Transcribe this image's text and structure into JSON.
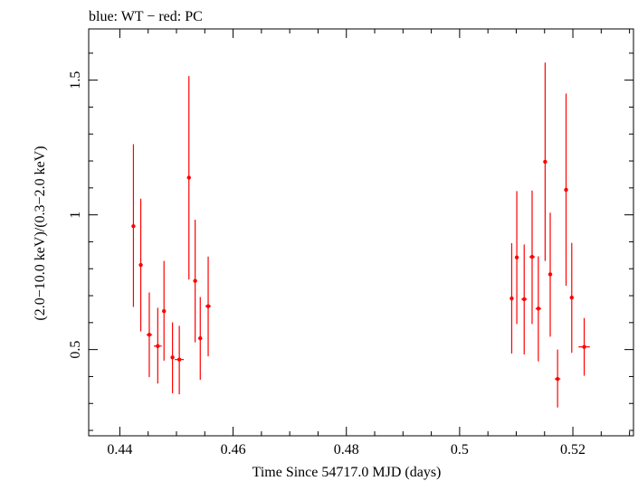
{
  "chart_data": {
    "type": "scatter",
    "title": "blue: WT − red: PC",
    "xlabel": "Time Since 54717.0 MJD (days)",
    "ylabel": "(2.0−10.0 keV)/(0.3−2.0 keV)",
    "xlim": [
      0.4345,
      0.5307
    ],
    "ylim": [
      0.18,
      1.69
    ],
    "x_ticks": [
      0.44,
      0.46,
      0.48,
      0.5,
      0.52
    ],
    "x_tick_labels": [
      "0.44",
      "0.46",
      "0.48",
      "0.5",
      "0.52"
    ],
    "y_ticks": [
      0.5,
      1.0,
      1.5
    ],
    "y_tick_labels": [
      "0.5",
      "1",
      "1.5"
    ],
    "grid": false,
    "series": [
      {
        "color": "#ff0000",
        "points": [
          {
            "x": 0.4424,
            "y": 0.958,
            "xerr": 0.0003,
            "ylo": 0.658,
            "yhi": 1.262
          },
          {
            "x": 0.4437,
            "y": 0.814,
            "xerr": 0.0003,
            "ylo": 0.567,
            "yhi": 1.06
          },
          {
            "x": 0.4452,
            "y": 0.555,
            "xerr": 0.0005,
            "ylo": 0.398,
            "yhi": 0.712
          },
          {
            "x": 0.4467,
            "y": 0.513,
            "xerr": 0.0007,
            "ylo": 0.374,
            "yhi": 0.655
          },
          {
            "x": 0.4478,
            "y": 0.643,
            "xerr": 0.0003,
            "ylo": 0.459,
            "yhi": 0.829
          },
          {
            "x": 0.4493,
            "y": 0.471,
            "xerr": 0.0003,
            "ylo": 0.338,
            "yhi": 0.601
          },
          {
            "x": 0.4505,
            "y": 0.463,
            "xerr": 0.0008,
            "ylo": 0.334,
            "yhi": 0.588
          },
          {
            "x": 0.4522,
            "y": 1.138,
            "xerr": 0.0003,
            "ylo": 0.76,
            "yhi": 1.515
          },
          {
            "x": 0.4533,
            "y": 0.755,
            "xerr": 0.0003,
            "ylo": 0.527,
            "yhi": 0.982
          },
          {
            "x": 0.4542,
            "y": 0.542,
            "xerr": 0.0003,
            "ylo": 0.388,
            "yhi": 0.695
          },
          {
            "x": 0.4556,
            "y": 0.661,
            "xerr": 0.0005,
            "ylo": 0.475,
            "yhi": 0.845
          },
          {
            "x": 0.5092,
            "y": 0.69,
            "xerr": 0.0003,
            "ylo": 0.485,
            "yhi": 0.895
          },
          {
            "x": 0.5101,
            "y": 0.842,
            "xerr": 0.0003,
            "ylo": 0.595,
            "yhi": 1.088
          },
          {
            "x": 0.5114,
            "y": 0.687,
            "xerr": 0.0005,
            "ylo": 0.482,
            "yhi": 0.89
          },
          {
            "x": 0.5128,
            "y": 0.844,
            "xerr": 0.0005,
            "ylo": 0.595,
            "yhi": 1.09
          },
          {
            "x": 0.5139,
            "y": 0.652,
            "xerr": 0.0005,
            "ylo": 0.456,
            "yhi": 0.846
          },
          {
            "x": 0.5151,
            "y": 1.197,
            "xerr": 0.0003,
            "ylo": 0.829,
            "yhi": 1.565
          },
          {
            "x": 0.516,
            "y": 0.779,
            "xerr": 0.0003,
            "ylo": 0.548,
            "yhi": 1.008
          },
          {
            "x": 0.5173,
            "y": 0.391,
            "xerr": 0.0005,
            "ylo": 0.285,
            "yhi": 0.5
          },
          {
            "x": 0.5188,
            "y": 1.093,
            "xerr": 0.0003,
            "ylo": 0.737,
            "yhi": 1.45
          },
          {
            "x": 0.5198,
            "y": 0.693,
            "xerr": 0.0003,
            "ylo": 0.488,
            "yhi": 0.896
          },
          {
            "x": 0.522,
            "y": 0.51,
            "xerr": 0.001,
            "ylo": 0.403,
            "yhi": 0.617
          }
        ]
      }
    ]
  }
}
